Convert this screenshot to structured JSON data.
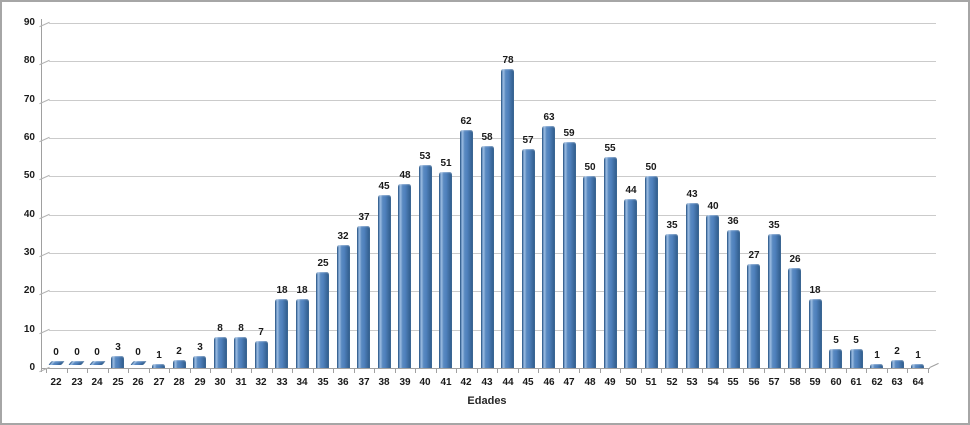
{
  "window": {
    "background": "#ffffff",
    "border_color": "#a6a6a6"
  },
  "chart_data": {
    "type": "bar",
    "title": "",
    "xlabel": "Edades",
    "ylabel": "",
    "ylim": [
      0,
      90
    ],
    "y_tick_step": 10,
    "y_ticks": [
      0,
      10,
      20,
      30,
      40,
      50,
      60,
      70,
      80,
      90
    ],
    "grid": true,
    "legend_position": "none",
    "bar_labels_shown": true,
    "style": "excel-3d-column",
    "categories": [
      "22",
      "23",
      "24",
      "25",
      "26",
      "27",
      "28",
      "29",
      "30",
      "31",
      "32",
      "33",
      "34",
      "35",
      "36",
      "37",
      "38",
      "39",
      "40",
      "41",
      "42",
      "43",
      "44",
      "45",
      "46",
      "47",
      "48",
      "49",
      "50",
      "51",
      "52",
      "53",
      "54",
      "55",
      "56",
      "57",
      "58",
      "59",
      "60",
      "61",
      "62",
      "63",
      "64"
    ],
    "values": [
      0,
      0,
      0,
      3,
      0,
      1,
      2,
      3,
      8,
      8,
      7,
      18,
      18,
      25,
      32,
      37,
      45,
      48,
      53,
      51,
      62,
      58,
      78,
      57,
      63,
      59,
      50,
      55,
      44,
      50,
      35,
      43,
      40,
      36,
      27,
      35,
      26,
      18,
      5,
      5,
      1,
      2,
      1
    ],
    "colors": {
      "bar_main": "#4F81BD",
      "bar_highlight": "#96B8DE",
      "bar_shadow": "#2D5A89",
      "gridline": "#CBCBCB",
      "axis": "#A0A0A0",
      "text": "#1A1A1A"
    }
  }
}
